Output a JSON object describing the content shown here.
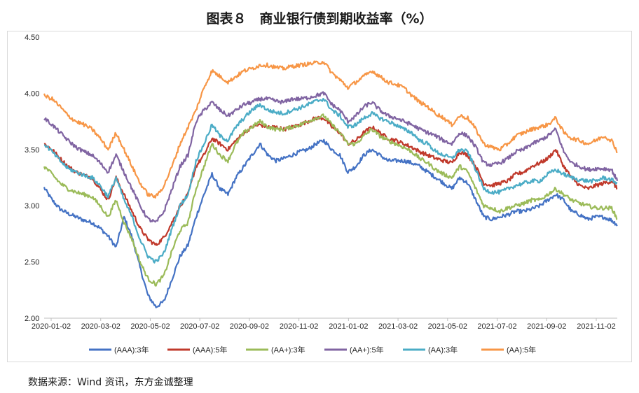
{
  "title": "图表８　商业银行债到期收益率（%）",
  "source": "数据来源：Wind 资讯，东方金诚整理",
  "chart_data": {
    "type": "line",
    "xlabel": "",
    "ylabel": "",
    "ylim": [
      2.0,
      4.5
    ],
    "yticks": [
      "2.00",
      "2.50",
      "3.00",
      "3.50",
      "4.00",
      "4.50"
    ],
    "xticks": [
      "2020-01-02",
      "2020-03-02",
      "2020-05-02",
      "2020-07-02",
      "2020-09-02",
      "2020-11-02",
      "2021-01-02",
      "2021-03-02",
      "2021-05-02",
      "2021-07-02",
      "2021-09-02",
      "2021-11-02"
    ],
    "x": [
      0,
      10,
      20,
      30,
      40,
      50,
      60,
      70,
      80,
      90,
      100,
      110,
      120,
      130,
      140,
      150,
      160,
      170,
      180,
      190,
      200,
      210,
      220,
      230,
      240,
      250,
      260,
      270,
      280,
      290,
      300,
      310,
      320,
      330,
      340,
      350,
      360,
      370,
      380,
      390,
      400,
      410,
      420,
      430,
      440,
      450,
      460,
      470,
      480,
      490,
      500,
      510,
      520,
      530,
      540,
      550,
      560,
      570,
      580,
      590,
      600,
      610,
      620,
      630,
      640,
      650,
      660,
      670,
      680,
      690,
      700,
      710,
      717
    ],
    "grid": false,
    "legend_position": "bottom",
    "series": [
      {
        "name": "(AAA):3年",
        "color": "#4472C4",
        "values": [
          3.16,
          3.05,
          2.97,
          2.93,
          2.9,
          2.87,
          2.85,
          2.8,
          2.73,
          2.63,
          2.9,
          2.72,
          2.45,
          2.2,
          2.1,
          2.15,
          2.35,
          2.55,
          2.65,
          2.9,
          3.1,
          3.28,
          3.15,
          3.1,
          3.25,
          3.35,
          3.45,
          3.55,
          3.45,
          3.4,
          3.42,
          3.45,
          3.48,
          3.5,
          3.55,
          3.58,
          3.5,
          3.45,
          3.3,
          3.35,
          3.45,
          3.5,
          3.45,
          3.4,
          3.4,
          3.4,
          3.38,
          3.35,
          3.3,
          3.25,
          3.2,
          3.15,
          3.25,
          3.2,
          3.05,
          2.9,
          2.88,
          2.9,
          2.92,
          2.95,
          2.95,
          2.97,
          3.0,
          3.05,
          3.1,
          3.05,
          2.95,
          2.92,
          2.88,
          2.9,
          2.9,
          2.87,
          2.83
        ]
      },
      {
        "name": "(AAA):5年",
        "color": "#C0392B",
        "values": [
          3.55,
          3.5,
          3.42,
          3.35,
          3.3,
          3.27,
          3.25,
          3.15,
          3.05,
          3.25,
          3.1,
          2.95,
          2.8,
          2.7,
          2.65,
          2.72,
          2.85,
          3.0,
          3.1,
          3.35,
          3.45,
          3.6,
          3.55,
          3.5,
          3.58,
          3.65,
          3.7,
          3.72,
          3.7,
          3.7,
          3.68,
          3.7,
          3.72,
          3.75,
          3.78,
          3.78,
          3.7,
          3.65,
          3.55,
          3.58,
          3.65,
          3.7,
          3.65,
          3.6,
          3.58,
          3.55,
          3.52,
          3.48,
          3.45,
          3.42,
          3.4,
          3.38,
          3.48,
          3.45,
          3.35,
          3.2,
          3.18,
          3.2,
          3.22,
          3.28,
          3.3,
          3.35,
          3.38,
          3.42,
          3.5,
          3.35,
          3.25,
          3.18,
          3.15,
          3.18,
          3.2,
          3.22,
          3.15
        ]
      },
      {
        "name": "(AA+):3年",
        "color": "#9BBB59",
        "values": [
          3.35,
          3.28,
          3.2,
          3.15,
          3.12,
          3.1,
          3.08,
          3.0,
          2.9,
          3.05,
          2.85,
          2.7,
          2.5,
          2.35,
          2.3,
          2.38,
          2.6,
          2.78,
          2.85,
          3.15,
          3.35,
          3.55,
          3.45,
          3.4,
          3.55,
          3.65,
          3.7,
          3.75,
          3.7,
          3.68,
          3.68,
          3.7,
          3.72,
          3.75,
          3.78,
          3.8,
          3.72,
          3.65,
          3.55,
          3.55,
          3.62,
          3.68,
          3.62,
          3.58,
          3.55,
          3.52,
          3.48,
          3.42,
          3.38,
          3.32,
          3.28,
          3.25,
          3.35,
          3.3,
          3.15,
          3.0,
          2.98,
          2.95,
          2.98,
          3.0,
          3.02,
          3.05,
          3.05,
          3.1,
          3.15,
          3.1,
          3.05,
          3.02,
          3.0,
          2.98,
          2.98,
          2.98,
          2.88
        ]
      },
      {
        "name": "(AA+):5年",
        "color": "#8064A2",
        "values": [
          3.78,
          3.72,
          3.65,
          3.58,
          3.52,
          3.48,
          3.45,
          3.38,
          3.3,
          3.45,
          3.3,
          3.15,
          3.0,
          2.88,
          2.85,
          2.95,
          3.15,
          3.35,
          3.45,
          3.75,
          3.85,
          3.92,
          3.85,
          3.8,
          3.85,
          3.9,
          3.92,
          3.95,
          3.95,
          3.93,
          3.92,
          3.95,
          3.95,
          3.96,
          3.98,
          4.0,
          3.9,
          3.85,
          3.75,
          3.8,
          3.88,
          3.92,
          3.85,
          3.8,
          3.78,
          3.75,
          3.72,
          3.68,
          3.65,
          3.62,
          3.58,
          3.55,
          3.65,
          3.62,
          3.52,
          3.38,
          3.36,
          3.38,
          3.42,
          3.48,
          3.5,
          3.55,
          3.58,
          3.62,
          3.68,
          3.48,
          3.38,
          3.35,
          3.32,
          3.33,
          3.33,
          3.32,
          3.22
        ]
      },
      {
        "name": "(AA):3年",
        "color": "#4BACC6",
        "values": [
          3.55,
          3.48,
          3.4,
          3.33,
          3.3,
          3.27,
          3.25,
          3.18,
          3.08,
          3.25,
          3.05,
          2.9,
          2.7,
          2.55,
          2.5,
          2.58,
          2.8,
          3.0,
          3.1,
          3.4,
          3.55,
          3.72,
          3.62,
          3.58,
          3.7,
          3.78,
          3.85,
          3.9,
          3.85,
          3.83,
          3.82,
          3.85,
          3.87,
          3.9,
          3.93,
          3.95,
          3.85,
          3.8,
          3.7,
          3.72,
          3.78,
          3.82,
          3.78,
          3.75,
          3.72,
          3.68,
          3.65,
          3.58,
          3.55,
          3.48,
          3.45,
          3.42,
          3.5,
          3.48,
          3.32,
          3.15,
          3.12,
          3.12,
          3.15,
          3.18,
          3.2,
          3.22,
          3.22,
          3.28,
          3.32,
          3.28,
          3.25,
          3.23,
          3.22,
          3.22,
          3.25,
          3.23,
          3.2
        ]
      },
      {
        "name": "(AA):5年",
        "color": "#F79646",
        "values": [
          3.98,
          3.95,
          3.88,
          3.8,
          3.75,
          3.72,
          3.68,
          3.6,
          3.5,
          3.65,
          3.5,
          3.35,
          3.2,
          3.1,
          3.08,
          3.18,
          3.35,
          3.55,
          3.7,
          3.85,
          4.05,
          4.2,
          4.15,
          4.1,
          4.15,
          4.2,
          4.22,
          4.25,
          4.25,
          4.23,
          4.22,
          4.24,
          4.25,
          4.26,
          4.27,
          4.28,
          4.18,
          4.12,
          4.05,
          4.1,
          4.15,
          4.2,
          4.15,
          4.1,
          4.08,
          4.05,
          3.98,
          3.92,
          3.88,
          3.82,
          3.78,
          3.72,
          3.8,
          3.78,
          3.68,
          3.55,
          3.52,
          3.5,
          3.55,
          3.62,
          3.65,
          3.68,
          3.7,
          3.72,
          3.78,
          3.65,
          3.6,
          3.58,
          3.55,
          3.58,
          3.62,
          3.58,
          3.48
        ]
      }
    ]
  }
}
